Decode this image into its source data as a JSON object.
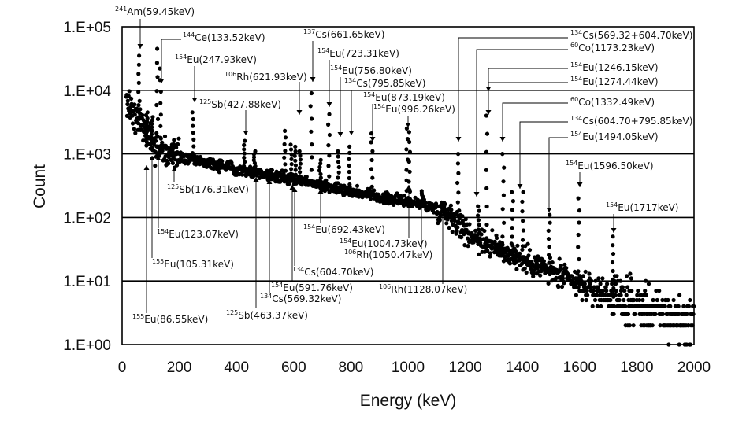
{
  "chart_data": {
    "type": "scatter",
    "xlabel": "Energy (keV)",
    "ylabel": "Count",
    "xlim": [
      0,
      2000
    ],
    "ylim": [
      1,
      100000
    ],
    "y_scale": "log",
    "x_ticks": [
      "0",
      "200",
      "400",
      "600",
      "800",
      "1000",
      "1200",
      "1400",
      "1600",
      "1800",
      "2000"
    ],
    "y_ticks": [
      "1.E+00",
      "1.E+01",
      "1.E+02",
      "1.E+03",
      "1.E+04",
      "1.E+05"
    ],
    "grid": "horizontal",
    "marker_color": "#000000",
    "continuum": [
      [
        20,
        6000
      ],
      [
        40,
        4500
      ],
      [
        60,
        3500
      ],
      [
        80,
        2400
      ],
      [
        100,
        1700
      ],
      [
        120,
        1300
      ],
      [
        150,
        1050
      ],
      [
        200,
        900
      ],
      [
        250,
        800
      ],
      [
        300,
        720
      ],
      [
        350,
        650
      ],
      [
        400,
        580
      ],
      [
        450,
        530
      ],
      [
        500,
        480
      ],
      [
        550,
        440
      ],
      [
        600,
        400
      ],
      [
        650,
        360
      ],
      [
        700,
        320
      ],
      [
        750,
        290
      ],
      [
        800,
        260
      ],
      [
        850,
        230
      ],
      [
        900,
        210
      ],
      [
        950,
        190
      ],
      [
        1000,
        180
      ],
      [
        1050,
        160
      ],
      [
        1100,
        140
      ],
      [
        1150,
        110
      ],
      [
        1180,
        80
      ],
      [
        1200,
        60
      ],
      [
        1250,
        45
      ],
      [
        1300,
        35
      ],
      [
        1350,
        28
      ],
      [
        1400,
        22
      ],
      [
        1450,
        18
      ],
      [
        1500,
        14
      ],
      [
        1550,
        11
      ],
      [
        1600,
        9
      ],
      [
        1650,
        7
      ],
      [
        1700,
        6
      ],
      [
        1750,
        5
      ],
      [
        1800,
        4
      ],
      [
        1850,
        3.5
      ],
      [
        1900,
        3
      ],
      [
        1950,
        2.5
      ],
      [
        2000,
        2.2
      ]
    ],
    "peaks": [
      {
        "energy": 59.45,
        "counts": 35000
      },
      {
        "energy": 86.55,
        "counts": 4500
      },
      {
        "energy": 105.31,
        "counts": 3800
      },
      {
        "energy": 123.07,
        "counts": 45000
      },
      {
        "energy": 133.52,
        "counts": 22000
      },
      {
        "energy": 176.31,
        "counts": 1400
      },
      {
        "energy": 247.93,
        "counts": 4500
      },
      {
        "energy": 427.88,
        "counts": 1600
      },
      {
        "energy": 463.37,
        "counts": 1100
      },
      {
        "energy": 569.32,
        "counts": 2300
      },
      {
        "energy": 591.76,
        "counts": 1400
      },
      {
        "energy": 604.7,
        "counts": 1300
      },
      {
        "energy": 621.93,
        "counts": 1100
      },
      {
        "energy": 661.65,
        "counts": 9000
      },
      {
        "energy": 692.43,
        "counts": 800
      },
      {
        "energy": 723.31,
        "counts": 4200
      },
      {
        "energy": 756.8,
        "counts": 1100
      },
      {
        "energy": 795.85,
        "counts": 1300
      },
      {
        "energy": 873.19,
        "counts": 2100
      },
      {
        "energy": 996.26,
        "counts": 2500
      },
      {
        "energy": 1004.73,
        "counts": 2200
      },
      {
        "energy": 1050.47,
        "counts": 260
      },
      {
        "energy": 1128.07,
        "counts": 170
      },
      {
        "energy": 1173.23,
        "counts": 1000
      },
      {
        "energy": 1246.15,
        "counts": 150
      },
      {
        "energy": 1274.44,
        "counts": 4000
      },
      {
        "energy": 1332.49,
        "counts": 1000
      },
      {
        "energy": 1365.15,
        "counts": 250
      },
      {
        "energy": 1400.55,
        "counts": 250
      },
      {
        "energy": 1494.05,
        "counts": 110
      },
      {
        "energy": 1596.5,
        "counts": 200
      },
      {
        "energy": 1717,
        "counts": 50
      }
    ],
    "annotations": [
      {
        "iso": "241",
        "label": "Am(59.45keV)",
        "energy": 59.45
      },
      {
        "iso": "144",
        "label": "Ce(133.52keV)",
        "energy": 133.52
      },
      {
        "iso": "154",
        "label": "Eu(247.93keV)",
        "energy": 247.93
      },
      {
        "iso": "106",
        "label": "Rh(621.93keV)",
        "energy": 621.93
      },
      {
        "iso": "125",
        "label": "Sb(427.88keV)",
        "energy": 427.88
      },
      {
        "iso": "137",
        "label": "Cs(661.65keV)",
        "energy": 661.65
      },
      {
        "iso": "154",
        "label": "Eu(723.31keV)",
        "energy": 723.31
      },
      {
        "iso": "154",
        "label": "Eu(756.80keV)",
        "energy": 756.8
      },
      {
        "iso": "134",
        "label": "Cs(795.85keV)",
        "energy": 795.85
      },
      {
        "iso": "154",
        "label": "Eu(873.19keV)",
        "energy": 873.19
      },
      {
        "iso": "154",
        "label": "Eu(996.26keV)",
        "energy": 996.26
      },
      {
        "iso": "134",
        "label": "Cs(569.32+604.70keV)",
        "energy": 1173
      },
      {
        "iso": "60",
        "label": "Co(1173.23keV)",
        "energy": 1173.23
      },
      {
        "iso": "154",
        "label": "Eu(1246.15keV)",
        "energy": 1246.15
      },
      {
        "iso": "154",
        "label": "Eu(1274.44keV)",
        "energy": 1274.44
      },
      {
        "iso": "60",
        "label": "Co(1332.49keV)",
        "energy": 1332.49
      },
      {
        "iso": "134",
        "label": "Cs(604.70+795.85keV)",
        "energy": 1400.55
      },
      {
        "iso": "154",
        "label": "Eu(1494.05keV)",
        "energy": 1494.05
      },
      {
        "iso": "154",
        "label": "Eu(1596.50keV)",
        "energy": 1596.5
      },
      {
        "iso": "154",
        "label": "Eu(1717keV)",
        "energy": 1717
      },
      {
        "iso": "125",
        "label": "Sb(176.31keV)",
        "energy": 176.31
      },
      {
        "iso": "154",
        "label": "Eu(123.07keV)",
        "energy": 123.07
      },
      {
        "iso": "155",
        "label": "Eu(105.31keV)",
        "energy": 105.31
      },
      {
        "iso": "155",
        "label": "Eu(86.55keV)",
        "energy": 86.55
      },
      {
        "iso": "125",
        "label": "Sb(463.37keV)",
        "energy": 463.37
      },
      {
        "iso": "134",
        "label": "Cs(569.32keV)",
        "energy": 569.32
      },
      {
        "iso": "154",
        "label": "Eu(591.76keV)",
        "energy": 591.76
      },
      {
        "iso": "134",
        "label": "Cs(604.70keV)",
        "energy": 604.7
      },
      {
        "iso": "154",
        "label": "Eu(692.43keV)",
        "energy": 692.43
      },
      {
        "iso": "154",
        "label": "Eu(1004.73keV)",
        "energy": 1004.73
      },
      {
        "iso": "106",
        "label": "Rh(1050.47keV)",
        "energy": 1050.47
      },
      {
        "iso": "106",
        "label": "Rh(1128.07keV)",
        "energy": 1128.07
      }
    ]
  }
}
